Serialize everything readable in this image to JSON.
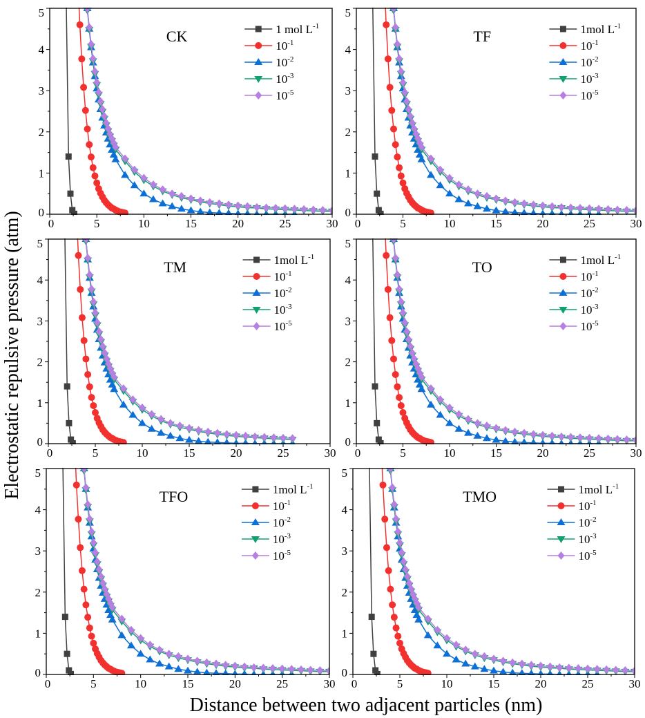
{
  "chart_data": {
    "type": "line",
    "ylabel": "Electrostatic repulsive pressure (atm)",
    "xlabel": "Distance between two adjacent particles (nm)",
    "xlim": [
      0,
      30
    ],
    "ylim": [
      0,
      5
    ],
    "xticks": [
      "0",
      "5",
      "10",
      "15",
      "20",
      "25",
      "30"
    ],
    "yticks": [
      "0",
      "1",
      "2",
      "3",
      "4",
      "5"
    ],
    "grid": false,
    "legend_placement": "top-right",
    "series": [
      {
        "name": "1 mol L-1",
        "color": "#404040",
        "marker": "square",
        "x": [
          1.7,
          2.0,
          2.2,
          2.4,
          2.6
        ],
        "y": [
          6.0,
          1.4,
          0.5,
          0.1,
          0.01
        ]
      },
      {
        "name": "10-1",
        "color": "#f2302e",
        "marker": "circle",
        "x": [
          3.0,
          3.2,
          3.4,
          3.6,
          3.8,
          4.0,
          4.2,
          4.4,
          4.6,
          4.8,
          5.0,
          5.2,
          5.4,
          5.6,
          5.8,
          6.0,
          6.2,
          6.4,
          6.6,
          6.8,
          7.0,
          7.2,
          7.4,
          7.6,
          7.8,
          8.0
        ],
        "y": [
          5.62,
          4.6,
          3.77,
          3.08,
          2.52,
          2.07,
          1.69,
          1.39,
          1.13,
          0.93,
          0.76,
          0.62,
          0.51,
          0.42,
          0.34,
          0.28,
          0.23,
          0.19,
          0.15,
          0.13,
          0.1,
          0.08,
          0.06,
          0.05,
          0.04,
          0.03
        ]
      },
      {
        "name": "10-2",
        "color": "#0b6fd6",
        "marker": "triangle-up",
        "x": [
          4.0,
          4.2,
          4.4,
          4.6,
          4.8,
          5.0,
          5.2,
          5.4,
          5.6,
          5.8,
          6.0,
          6.2,
          6.4,
          6.6,
          6.8,
          7.0,
          8,
          9,
          10,
          11,
          12,
          13,
          14,
          15,
          16,
          17,
          18,
          19,
          20,
          21,
          22,
          23,
          24,
          25,
          26
        ],
        "y": [
          5.0,
          4.5,
          4.05,
          3.68,
          3.35,
          3.05,
          2.78,
          2.55,
          2.34,
          2.15,
          1.98,
          1.83,
          1.69,
          1.56,
          1.44,
          1.33,
          0.95,
          0.7,
          0.5,
          0.36,
          0.26,
          0.19,
          0.13,
          0.09,
          0.06,
          0.04,
          0.03,
          0.02,
          0.01,
          0.01,
          0,
          0,
          0,
          0,
          0
        ]
      },
      {
        "name": "10-3",
        "color": "#12a070",
        "marker": "triangle-down",
        "x": [
          4.0,
          4.2,
          4.4,
          4.6,
          4.8,
          5.0,
          5.2,
          5.4,
          5.6,
          5.8,
          6.0,
          6.2,
          6.4,
          6.6,
          6.8,
          7.0,
          8,
          9,
          10,
          11,
          12,
          13,
          14,
          15,
          16,
          17,
          18,
          19,
          20,
          21,
          22,
          23,
          24,
          25,
          26,
          27,
          28,
          29,
          30
        ],
        "y": [
          4.95,
          4.48,
          4.07,
          3.72,
          3.41,
          3.14,
          2.9,
          2.68,
          2.49,
          2.32,
          2.16,
          2.02,
          1.89,
          1.78,
          1.67,
          1.57,
          1.29,
          1.03,
          0.83,
          0.68,
          0.56,
          0.47,
          0.4,
          0.35,
          0.3,
          0.26,
          0.23,
          0.2,
          0.18,
          0.16,
          0.15,
          0.13,
          0.12,
          0.11,
          0.1,
          0.09,
          0.08,
          0.07,
          0.07
        ]
      },
      {
        "name": "10-5",
        "color": "#b67fe2",
        "marker": "diamond",
        "x": [
          4.0,
          4.2,
          4.4,
          4.6,
          4.8,
          5.0,
          5.2,
          5.4,
          5.6,
          5.8,
          6.0,
          6.2,
          6.4,
          6.6,
          6.8,
          7.0,
          8,
          9,
          10,
          11,
          12,
          13,
          14,
          15,
          16,
          17,
          18,
          19,
          20,
          21,
          22,
          23,
          24,
          25,
          26,
          27,
          28,
          29,
          30
        ],
        "y": [
          5.0,
          4.54,
          4.13,
          3.78,
          3.47,
          3.2,
          2.96,
          2.74,
          2.55,
          2.38,
          2.22,
          2.08,
          1.95,
          1.84,
          1.73,
          1.63,
          1.35,
          1.08,
          0.88,
          0.72,
          0.6,
          0.5,
          0.44,
          0.38,
          0.33,
          0.29,
          0.26,
          0.23,
          0.21,
          0.19,
          0.17,
          0.16,
          0.15,
          0.14,
          0.13,
          0.12,
          0.11,
          0.1,
          0.09
        ]
      }
    ],
    "panels": [
      {
        "title": "CK",
        "series_xmax": 30,
        "legend": [
          {
            "base": "1 mol L",
            "exp": "-1"
          },
          {
            "base": "10",
            "exp": "-1"
          },
          {
            "base": "10",
            "exp": "-2"
          },
          {
            "base": "10",
            "exp": "-3"
          },
          {
            "base": "10",
            "exp": "-5"
          }
        ]
      },
      {
        "title": "TF",
        "series_xmax": 30,
        "legend": [
          {
            "base": "1mol L",
            "exp": "-1"
          },
          {
            "base": "10",
            "exp": "-1"
          },
          {
            "base": "10",
            "exp": "-2"
          },
          {
            "base": "10",
            "exp": "-3"
          },
          {
            "base": "10",
            "exp": "-5"
          }
        ]
      },
      {
        "title": "TM",
        "series_xmax": 26,
        "legend": [
          {
            "base": "1mol L",
            "exp": "-1"
          },
          {
            "base": "10",
            "exp": "-1"
          },
          {
            "base": "10",
            "exp": "-2"
          },
          {
            "base": "10",
            "exp": "-3"
          },
          {
            "base": "10",
            "exp": "-5"
          }
        ]
      },
      {
        "title": "TO",
        "series_xmax": 30,
        "legend": [
          {
            "base": "1mol L",
            "exp": "-1"
          },
          {
            "base": "10",
            "exp": "-1"
          },
          {
            "base": "10",
            "exp": "-2"
          },
          {
            "base": "10",
            "exp": "-3"
          },
          {
            "base": "10",
            "exp": "-5"
          }
        ]
      },
      {
        "title": "TFO",
        "series_xmax": 30,
        "legend": [
          {
            "base": "1mol L",
            "exp": "-1"
          },
          {
            "base": "10",
            "exp": "-1"
          },
          {
            "base": "10",
            "exp": "-2"
          },
          {
            "base": "10",
            "exp": "-3"
          },
          {
            "base": "10",
            "exp": "-5"
          }
        ]
      },
      {
        "title": "TMO",
        "series_xmax": 30,
        "legend": [
          {
            "base": "1mol L",
            "exp": "-1"
          },
          {
            "base": "10",
            "exp": "-1"
          },
          {
            "base": "10",
            "exp": "-2"
          },
          {
            "base": "10",
            "exp": "-3"
          },
          {
            "base": "10",
            "exp": "-5"
          }
        ]
      }
    ]
  }
}
